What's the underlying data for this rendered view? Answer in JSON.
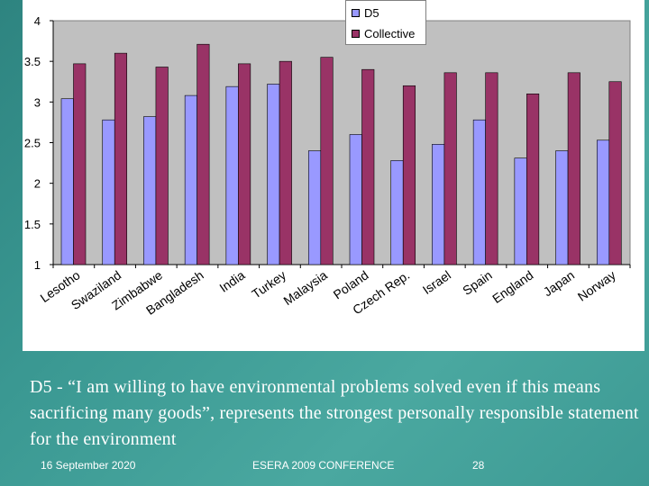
{
  "chart_data": {
    "type": "bar",
    "categories": [
      "Lesotho",
      "Swaziland",
      "Zimbabwe",
      "Bangladesh",
      "India",
      "Turkey",
      "Malaysia",
      "Poland",
      "Czech Rep.",
      "Israel",
      "Spain",
      "England",
      "Japan",
      "Norway"
    ],
    "series": [
      {
        "name": "D5",
        "values": [
          3.04,
          2.78,
          2.82,
          3.08,
          3.19,
          3.22,
          2.4,
          2.6,
          2.28,
          2.48,
          2.78,
          2.31,
          2.4,
          2.53
        ]
      },
      {
        "name": "Collective",
        "values": [
          3.47,
          3.6,
          3.43,
          3.71,
          3.47,
          3.5,
          3.55,
          3.4,
          3.2,
          3.36,
          3.36,
          3.1,
          3.36,
          3.25
        ]
      }
    ],
    "ylim": [
      1,
      4
    ],
    "yticks": [
      "1",
      "1.5",
      "2",
      "2.5",
      "3",
      "3.5",
      "4"
    ],
    "legend_position": "top-right",
    "grid": false,
    "colors": {
      "D5": "#9999ff",
      "Collective": "#993366",
      "plot_bg": "#c0c0c0"
    }
  },
  "caption": "D5 - “I am willing to have environmental problems solved even if this means sacrificing many goods”, represents the strongest personally responsible statement for the environment",
  "footer": {
    "date": "16 September 2020",
    "conference": "ESERA 2009 CONFERENCE",
    "page": "28"
  }
}
